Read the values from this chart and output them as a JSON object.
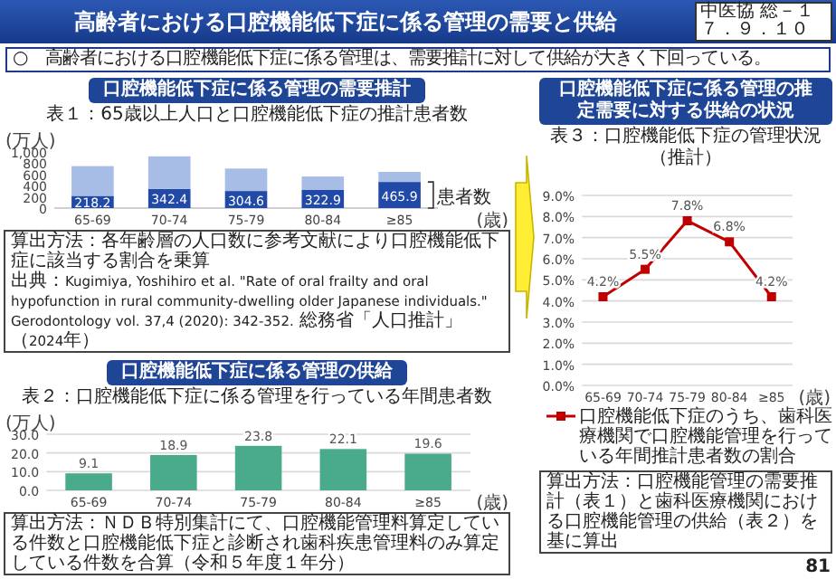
{
  "chart_data": [
    {
      "type": "other",
      "title": "高齢者における口腔機能低下症に係る管理の需要と供給",
      "annotations": [
        "中医協 総－１",
        "７．９．１０",
        "○　高齢者における口腔機能低下症に係る管理は、需要推計に対して供給が大きく下回っている。",
        "81"
      ]
    },
    {
      "type": "bar",
      "title": "口腔機能低下症に係る管理の需要推計",
      "subtitle": "表１：65歳以上人口と口腔機能低下症の推計患者数",
      "ylabel": "(万人)",
      "xlabel": "(歳)",
      "categories": [
        "65-69",
        "70-74",
        "75-79",
        "80-84",
        "≥85"
      ],
      "stacked": true,
      "ylim": [
        0,
        1000
      ],
      "yticks": [
        0,
        200,
        400,
        600,
        800,
        {
          "value": 1000,
          "label": "1,000"
        }
      ],
      "series": [
        {
          "name": "患者数",
          "color": "#2149a8",
          "values": [
            218.2,
            342.4,
            304.6,
            322.9,
            465.9
          ],
          "value_labels": [
            "218.2",
            "342.4",
            "304.6",
            "322.9",
            "465.9"
          ]
        },
        {
          "color": "#a8bde6",
          "values": [
            530,
            580,
            400,
            240,
            180
          ]
        }
      ],
      "annotations": [
        "算出方法：各年齢層の人口数に参考文献により口腔機能低下症に該当する割合を乗算",
        "出典：Kugimiya, Yoshihiro et al. \"Rate of oral frailty and oral hypofunction in rural community-dwelling older Japanese individuals.\" Gerodontology vol. 37,4 (2020): 342-352. 総務省「人口推計」（2024年）"
      ]
    },
    {
      "type": "bar",
      "title": "口腔機能低下症に係る管理の供給",
      "subtitle": "表２：口腔機能低下症に係る管理を行っている年間患者数",
      "ylabel": "(万人)",
      "xlabel": "(歳)",
      "categories": [
        "65-69",
        "70-74",
        "75-79",
        "80-84",
        "≥85"
      ],
      "ylim": [
        0,
        30
      ],
      "yticks": [
        {
          "value": 0,
          "label": "0.0"
        },
        {
          "value": 10,
          "label": "10.0"
        },
        {
          "value": 20,
          "label": "20.0"
        },
        {
          "value": 30,
          "label": "30.0"
        }
      ],
      "grid": "y",
      "data_labels": true,
      "series": [
        {
          "color": "#4aab8c",
          "values": [
            9.1,
            18.9,
            23.8,
            22.1,
            19.6
          ]
        }
      ],
      "annotations": [
        "算出方法：ＮＤＢ特別集計にて、口腔機能管理料算定している件数と口腔機能低下症と診断され歯科疾患管理料のみ算定している件数を合算（令和５年度１年分）"
      ]
    },
    {
      "type": "line",
      "title": "口腔機能低下症に係る管理の推定需要に対する供給の状況",
      "subtitle": "表３：口腔機能低下症の管理状況（推計）",
      "xlabel": "(歳)",
      "categories": [
        "65-69",
        "70-74",
        "75-79",
        "80-84",
        "≥85"
      ],
      "ylim": [
        0,
        9
      ],
      "yticks": [
        {
          "value": 0,
          "label": "0.0%"
        },
        {
          "value": 1,
          "label": "1.0%"
        },
        {
          "value": 2,
          "label": "2.0%"
        },
        {
          "value": 3,
          "label": "3.0%"
        },
        {
          "value": 4,
          "label": "4.0%"
        },
        {
          "value": 5,
          "label": "5.0%"
        },
        {
          "value": 6,
          "label": "6.0%"
        },
        {
          "value": 7,
          "label": "7.0%"
        },
        {
          "value": 8,
          "label": "8.0%"
        },
        {
          "value": 9,
          "label": "9.0%"
        }
      ],
      "grid": "y",
      "legend": "bottom",
      "marker": "square",
      "series": [
        {
          "name": "口腔機能低下症のうち、歯科医療機関で口腔機能管理を行っている年間推計患者数の割合",
          "color": "#c00000",
          "values": [
            4.2,
            5.5,
            7.8,
            6.8,
            4.2
          ],
          "value_labels": [
            "4.2%",
            "5.5%",
            "7.8%",
            "6.8%",
            "4.2%"
          ]
        }
      ],
      "annotations": [
        "算出方法：口腔機能管理の需要推計（表１）と歯科医療機関における口腔機能管理の供給（表２）を基に算出"
      ]
    }
  ]
}
